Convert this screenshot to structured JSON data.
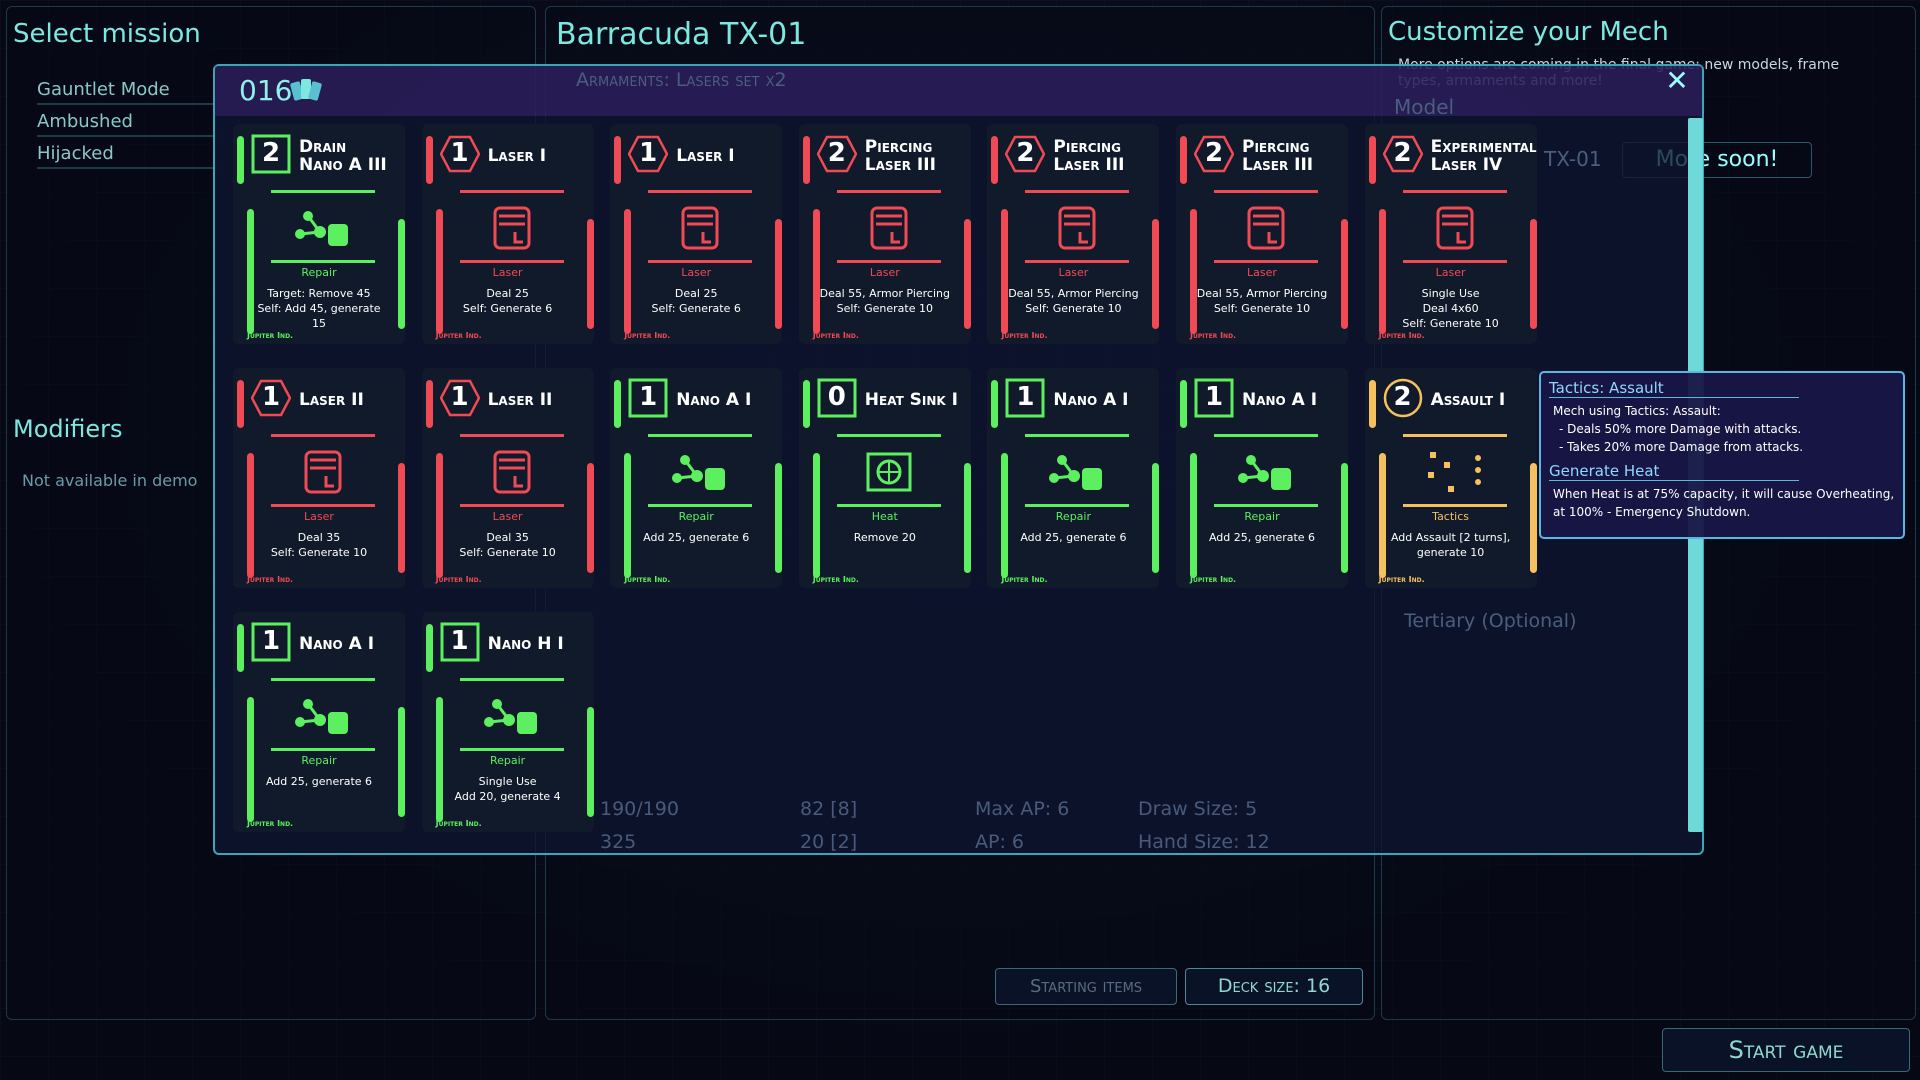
{
  "left": {
    "title": "Select mission",
    "missions": [
      "Gauntlet Mode",
      "Ambushed",
      "Hijacked"
    ],
    "modifiers_title": "Modifiers",
    "modifiers_text": "Not available in demo"
  },
  "middle": {
    "title": "Barracuda TX-01",
    "armaments": "Armaments: Lasers set x2",
    "buttons": {
      "starting_items": "Starting items",
      "deck_size": "Deck size: 16"
    }
  },
  "stats": [
    "190/190",
    "82 [8]",
    "Max AP: 6",
    "Draw Size: 5",
    "325",
    "20 [2]",
    "AP: 6",
    "Hand Size: 12"
  ],
  "right": {
    "title": "Customize your Mech",
    "note": "More options are coming in the final game: new models, frame types, armaments and more!",
    "model_label": "Model",
    "model_value": "TX-01",
    "model_more": "More soon!",
    "tertiary": "Tertiary (Optional)"
  },
  "start_button": "Start game",
  "colors": {
    "repair": "#5cf060",
    "laser": "#f04a55",
    "heat": "#5cf060",
    "tactics": "#f5c060",
    "accent": "#7ce8e0"
  },
  "deck": {
    "count": "016",
    "icon": "cards-icon",
    "close_icon": "close-icon",
    "cards": [
      {
        "cost": "2",
        "name": [
          "Drain",
          "Nano A III"
        ],
        "type": "Repair",
        "kind": "repair",
        "shape": "square",
        "icon": "drain-nano-icon",
        "desc": [
          "Target: Remove 45",
          "Self: Add 45, generate",
          "15"
        ],
        "maker": "Jupiter Ind."
      },
      {
        "cost": "1",
        "name": [
          "Laser I"
        ],
        "type": "Laser",
        "kind": "laser",
        "shape": "hex",
        "icon": "laser-icon",
        "desc": [
          "Deal 25",
          "Self: Generate 6"
        ],
        "maker": "Jupiter Ind."
      },
      {
        "cost": "1",
        "name": [
          "Laser I"
        ],
        "type": "Laser",
        "kind": "laser",
        "shape": "hex",
        "icon": "laser-icon",
        "desc": [
          "Deal 25",
          "Self: Generate 6"
        ],
        "maker": "Jupiter Ind."
      },
      {
        "cost": "2",
        "name": [
          "Piercing",
          "Laser III"
        ],
        "type": "Laser",
        "kind": "laser",
        "shape": "hex",
        "icon": "piercing-laser-icon",
        "desc": [
          "Deal 55, Armor Piercing",
          "Self: Generate 10"
        ],
        "maker": "Jupiter Ind."
      },
      {
        "cost": "2",
        "name": [
          "Piercing",
          "Laser III"
        ],
        "type": "Laser",
        "kind": "laser",
        "shape": "hex",
        "icon": "piercing-laser-icon",
        "desc": [
          "Deal 55, Armor Piercing",
          "Self: Generate 10"
        ],
        "maker": "Jupiter Ind."
      },
      {
        "cost": "2",
        "name": [
          "Piercing",
          "Laser III"
        ],
        "type": "Laser",
        "kind": "laser",
        "shape": "hex",
        "icon": "piercing-laser-icon",
        "desc": [
          "Deal 55, Armor Piercing",
          "Self: Generate 10"
        ],
        "maker": "Jupiter Ind."
      },
      {
        "cost": "2",
        "name": [
          "Experimental",
          "Laser IV"
        ],
        "type": "Laser",
        "kind": "laser",
        "shape": "hex",
        "icon": "experimental-laser-icon",
        "desc": [
          "Single Use",
          "Deal 4x60",
          "Self: Generate 10"
        ],
        "maker": "Jupiter Ind."
      },
      {
        "cost": "1",
        "name": [
          "Laser II"
        ],
        "type": "Laser",
        "kind": "laser",
        "shape": "hex",
        "icon": "laser-icon",
        "desc": [
          "Deal 35",
          "Self: Generate 10"
        ],
        "maker": "Jupiter Ind."
      },
      {
        "cost": "1",
        "name": [
          "Laser II"
        ],
        "type": "Laser",
        "kind": "laser",
        "shape": "hex",
        "icon": "laser-icon",
        "desc": [
          "Deal 35",
          "Self: Generate 10"
        ],
        "maker": "Jupiter Ind."
      },
      {
        "cost": "1",
        "name": [
          "Nano A I"
        ],
        "type": "Repair",
        "kind": "repair",
        "shape": "square",
        "icon": "nano-repair-icon",
        "desc": [
          "Add 25, generate 6"
        ],
        "maker": "Jupiter Ind."
      },
      {
        "cost": "0",
        "name": [
          "Heat Sink I"
        ],
        "type": "Heat",
        "kind": "heat",
        "shape": "square",
        "icon": "heat-sink-icon",
        "desc": [
          "Remove 20"
        ],
        "maker": "Jupiter Ind."
      },
      {
        "cost": "1",
        "name": [
          "Nano A I"
        ],
        "type": "Repair",
        "kind": "repair",
        "shape": "square",
        "icon": "nano-repair-icon",
        "desc": [
          "Add 25, generate 6"
        ],
        "maker": "Jupiter Ind."
      },
      {
        "cost": "1",
        "name": [
          "Nano A I"
        ],
        "type": "Repair",
        "kind": "repair",
        "shape": "square",
        "icon": "nano-repair-icon",
        "desc": [
          "Add 25, generate 6"
        ],
        "maker": "Jupiter Ind."
      },
      {
        "cost": "2",
        "name": [
          "Assault I"
        ],
        "type": "Tactics",
        "kind": "tactics",
        "shape": "circle",
        "icon": "tactics-icon",
        "desc": [
          "Add Assault [2 turns],",
          "generate 10"
        ],
        "maker": "Jupiter Ind."
      },
      {
        "cost": "1",
        "name": [
          "Nano A I"
        ],
        "type": "Repair",
        "kind": "repair",
        "shape": "square",
        "icon": "nano-repair-icon",
        "desc": [
          "Add 25, generate 6"
        ],
        "maker": "Jupiter Ind."
      },
      {
        "cost": "1",
        "name": [
          "Nano H I"
        ],
        "type": "Repair",
        "kind": "repair",
        "shape": "square",
        "icon": "nano-heal-icon",
        "desc": [
          "Single Use",
          "Add 20, generate 4"
        ],
        "maker": "Jupiter Ind."
      }
    ]
  },
  "tooltip": {
    "title1": "Tactics: Assault",
    "lines1": [
      "Mech using Tactics: Assault:",
      "- Deals 50% more Damage with attacks.",
      "- Takes 20% more Damage from attacks."
    ],
    "title2": "Generate Heat",
    "lines2": [
      "When Heat is at 75% capacity, it will cause Overheating,",
      "at 100% - Emergency Shutdown."
    ]
  }
}
